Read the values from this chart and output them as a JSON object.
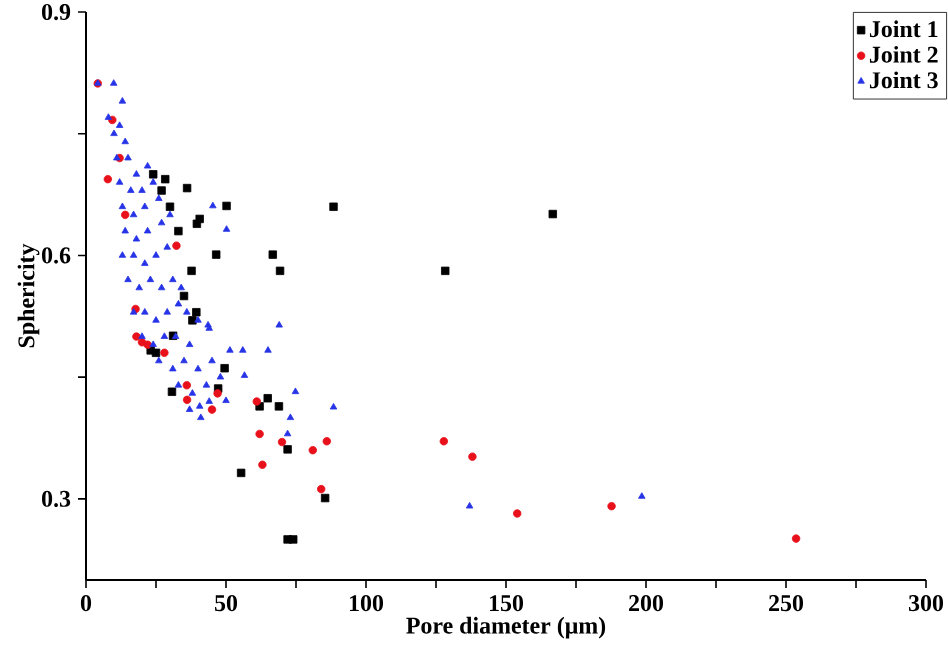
{
  "chart_data": {
    "type": "scatter",
    "xlabel": "Pore diameter (μm)",
    "ylabel": "Sphericity",
    "xlim": [
      0,
      300
    ],
    "ylim": [
      0.2,
      0.9
    ],
    "xticks": [
      0,
      {
        "value": 25,
        "label": null
      },
      50,
      {
        "value": 75,
        "label": null
      },
      100,
      {
        "value": 125,
        "label": null
      },
      150,
      {
        "value": 175,
        "label": null
      },
      200,
      {
        "value": 225,
        "label": null
      },
      250,
      {
        "value": 275,
        "label": null
      },
      300
    ],
    "yticks": [
      0.3,
      {
        "value": 0.45,
        "label": null
      },
      0.6,
      {
        "value": 0.75,
        "label": null
      },
      0.9
    ],
    "legend": "top right",
    "grid": false,
    "series": [
      {
        "name": "Joint 1",
        "color": "#000000",
        "marker": "square",
        "x": [
          50.2,
          88.4,
          66.7,
          69.3,
          46.5,
          36.1,
          39.6,
          40.6,
          37.7,
          28.3,
          23.1,
          31.1,
          39.4,
          30.7,
          49.5,
          47.2,
          55.4,
          64.9,
          62,
          68.9,
          72,
          85.4,
          72,
          74,
          128.3,
          166.7,
          24,
          27,
          30,
          33,
          25,
          35,
          38
        ],
        "values": [
          0.661,
          0.66,
          0.601,
          0.581,
          0.601,
          0.683,
          0.639,
          0.645,
          0.581,
          0.694,
          0.483,
          0.501,
          0.53,
          0.432,
          0.461,
          0.436,
          0.332,
          0.424,
          0.414,
          0.414,
          0.361,
          0.301,
          0.25,
          0.25,
          0.581,
          0.651,
          0.7,
          0.68,
          0.66,
          0.63,
          0.48,
          0.55,
          0.52
        ]
      },
      {
        "name": "Joint 2",
        "color": "#e8101a",
        "marker": "circle",
        "x": [
          32.3,
          36.1,
          45,
          61,
          62,
          63,
          70,
          81,
          86,
          84,
          17.7,
          20,
          9.4,
          4.2,
          7.8,
          47,
          127.8,
          138,
          154,
          187.7,
          253.6,
          12,
          14,
          18,
          22,
          28,
          36
        ],
        "values": [
          0.612,
          0.422,
          0.41,
          0.42,
          0.38,
          0.342,
          0.37,
          0.36,
          0.371,
          0.312,
          0.534,
          0.493,
          0.767,
          0.812,
          0.694,
          0.43,
          0.371,
          0.352,
          0.282,
          0.291,
          0.251,
          0.72,
          0.65,
          0.5,
          0.49,
          0.48,
          0.44
        ]
      },
      {
        "name": "Joint 3",
        "color": "#2633e6",
        "marker": "triangle",
        "x": [
          4.2,
          9.9,
          13,
          45.3,
          50.2,
          65,
          69,
          51.4,
          56,
          56.6,
          74.8,
          73,
          88.4,
          72,
          50,
          40.6,
          43.6,
          137,
          198.5,
          8,
          10,
          12,
          14,
          11,
          15,
          18,
          22,
          12,
          16,
          20,
          24,
          13,
          17,
          21,
          26,
          14,
          18,
          22,
          27,
          30,
          13,
          17,
          21,
          25,
          29,
          15,
          19,
          23,
          27,
          31,
          34,
          17,
          21,
          25,
          29,
          33,
          36,
          20,
          24,
          28,
          32,
          37,
          40,
          44,
          26,
          31,
          35,
          40,
          45,
          33,
          38,
          43,
          48,
          37,
          41,
          44
        ],
        "values": [
          0.812,
          0.812,
          0.79,
          0.661,
          0.632,
          0.483,
          0.514,
          0.483,
          0.483,
          0.452,
          0.432,
          0.4,
          0.413,
          0.38,
          0.421,
          0.414,
          0.514,
          0.291,
          0.303,
          0.77,
          0.75,
          0.76,
          0.74,
          0.72,
          0.72,
          0.7,
          0.71,
          0.69,
          0.68,
          0.68,
          0.69,
          0.66,
          0.65,
          0.66,
          0.67,
          0.63,
          0.62,
          0.63,
          0.64,
          0.65,
          0.6,
          0.6,
          0.59,
          0.6,
          0.61,
          0.57,
          0.56,
          0.57,
          0.56,
          0.57,
          0.56,
          0.53,
          0.53,
          0.52,
          0.53,
          0.54,
          0.53,
          0.5,
          0.49,
          0.5,
          0.5,
          0.49,
          0.52,
          0.51,
          0.47,
          0.46,
          0.47,
          0.46,
          0.47,
          0.44,
          0.43,
          0.44,
          0.45,
          0.41,
          0.4,
          0.42
        ]
      }
    ]
  }
}
